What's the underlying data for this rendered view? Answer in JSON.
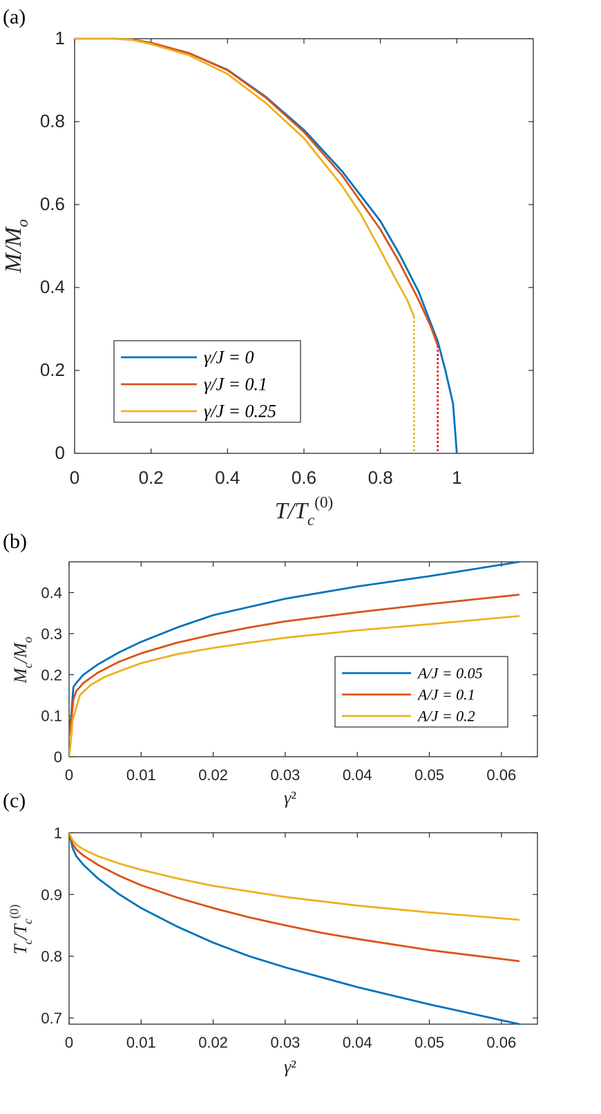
{
  "colors": {
    "blue": "#0072BD",
    "red": "#D95319",
    "yellow": "#EDB120",
    "dashed_red": "#FF0000",
    "dashed_yellow": "#EDB120",
    "axes": "#262626"
  },
  "chart_data": [
    {
      "panel": "(a)",
      "type": "line",
      "xlabel": "T/T_c^(0)",
      "ylabel": "M/M_o",
      "xlim": [
        0,
        1.2
      ],
      "ylim": [
        0,
        1
      ],
      "xticks": [
        "0",
        "0.2",
        "0.4",
        "0.6",
        "0.8",
        "1"
      ],
      "yticks": [
        "0",
        "0.2",
        "0.4",
        "0.6",
        "0.8",
        "1"
      ],
      "legend_position": "lower-left",
      "series": [
        {
          "name": "γ/J = 0",
          "color": "blue",
          "tc": 1.0,
          "jump": 0.0,
          "x": [
            0,
            0.1,
            0.15,
            0.2,
            0.3,
            0.4,
            0.5,
            0.6,
            0.7,
            0.8,
            0.85,
            0.9,
            0.95,
            0.97,
            0.99,
            1.0
          ],
          "y": [
            1,
            1,
            0.998,
            0.99,
            0.965,
            0.925,
            0.86,
            0.78,
            0.68,
            0.56,
            0.48,
            0.39,
            0.27,
            0.2,
            0.12,
            0
          ]
        },
        {
          "name": "γ/J = 0.1",
          "color": "red",
          "tc": 0.95,
          "jump": 0.26,
          "x": [
            0,
            0.1,
            0.15,
            0.2,
            0.3,
            0.4,
            0.5,
            0.6,
            0.7,
            0.8,
            0.85,
            0.9,
            0.93,
            0.95
          ],
          "y": [
            1,
            1,
            0.998,
            0.99,
            0.965,
            0.924,
            0.858,
            0.775,
            0.67,
            0.54,
            0.46,
            0.37,
            0.31,
            0.26
          ]
        },
        {
          "name": "γ/J = 0.25",
          "color": "yellow",
          "tc": 0.888,
          "jump": 0.33,
          "x": [
            0,
            0.1,
            0.15,
            0.2,
            0.3,
            0.4,
            0.5,
            0.6,
            0.7,
            0.75,
            0.8,
            0.84,
            0.87,
            0.888
          ],
          "y": [
            1,
            1,
            0.997,
            0.987,
            0.96,
            0.915,
            0.845,
            0.76,
            0.645,
            0.575,
            0.49,
            0.42,
            0.37,
            0.33
          ]
        }
      ],
      "dashed_drops": [
        {
          "series": "γ/J = 0.1",
          "x": 0.95,
          "from": 0.26,
          "to": 0,
          "color": "dashed_red"
        },
        {
          "series": "γ/J = 0.25",
          "x": 0.888,
          "from": 0.33,
          "to": 0,
          "color": "dashed_yellow"
        }
      ]
    },
    {
      "panel": "(b)",
      "type": "line",
      "xlabel": "γ²",
      "ylabel": "M_c/M_o",
      "xlim": [
        0,
        0.065
      ],
      "ylim": [
        0,
        0.475
      ],
      "xticks": [
        "0",
        "0.01",
        "0.02",
        "0.03",
        "0.04",
        "0.05",
        "0.06"
      ],
      "yticks": [
        "0",
        "0.1",
        "0.2",
        "0.3",
        "0.4"
      ],
      "legend_position": "middle-right",
      "series": [
        {
          "name": "A/J = 0.05",
          "color": "blue",
          "x": [
            0,
            0.0003,
            0.0006,
            0.001,
            0.002,
            0.004,
            0.007,
            0.01,
            0.015,
            0.02,
            0.025,
            0.03,
            0.04,
            0.05,
            0.0625
          ],
          "y": [
            0.06,
            0.1,
            0.17,
            0.18,
            0.2,
            0.225,
            0.255,
            0.28,
            0.315,
            0.345,
            0.365,
            0.385,
            0.415,
            0.44,
            0.475
          ]
        },
        {
          "name": "A/J = 0.1",
          "color": "red",
          "x": [
            0,
            0.0003,
            0.0006,
            0.001,
            0.002,
            0.004,
            0.007,
            0.01,
            0.015,
            0.02,
            0.025,
            0.03,
            0.04,
            0.05,
            0.0625
          ],
          "y": [
            0.05,
            0.09,
            0.14,
            0.16,
            0.18,
            0.205,
            0.232,
            0.252,
            0.278,
            0.298,
            0.315,
            0.33,
            0.352,
            0.372,
            0.395
          ]
        },
        {
          "name": "A/J = 0.2",
          "color": "yellow",
          "x": [
            0,
            0.0002,
            0.0005,
            0.001,
            0.0015,
            0.003,
            0.005,
            0.008,
            0.01,
            0.015,
            0.02,
            0.025,
            0.03,
            0.04,
            0.05,
            0.0625
          ],
          "y": [
            0,
            0.03,
            0.09,
            0.12,
            0.15,
            0.175,
            0.195,
            0.215,
            0.228,
            0.25,
            0.265,
            0.278,
            0.29,
            0.308,
            0.323,
            0.343
          ]
        }
      ]
    },
    {
      "panel": "(c)",
      "type": "line",
      "xlabel": "γ²",
      "ylabel": "T_c/T_c^(0)",
      "xlim": [
        0,
        0.065
      ],
      "ylim": [
        0.69,
        1
      ],
      "xticks": [
        "0",
        "0.01",
        "0.02",
        "0.03",
        "0.04",
        "0.05",
        "0.06"
      ],
      "yticks": [
        "0.7",
        "0.8",
        "0.9",
        "1"
      ],
      "series": [
        {
          "name": "A/J = 0.05",
          "color": "blue",
          "x": [
            0,
            0.0005,
            0.001,
            0.002,
            0.004,
            0.007,
            0.01,
            0.015,
            0.02,
            0.025,
            0.03,
            0.035,
            0.04,
            0.05,
            0.0625
          ],
          "y": [
            1,
            0.975,
            0.962,
            0.948,
            0.926,
            0.9,
            0.878,
            0.848,
            0.822,
            0.8,
            0.782,
            0.766,
            0.75,
            0.722,
            0.69
          ]
        },
        {
          "name": "A/J = 0.1",
          "color": "red",
          "x": [
            0,
            0.0005,
            0.001,
            0.002,
            0.004,
            0.007,
            0.01,
            0.015,
            0.02,
            0.025,
            0.03,
            0.035,
            0.04,
            0.05,
            0.0625
          ],
          "y": [
            1,
            0.982,
            0.973,
            0.963,
            0.948,
            0.93,
            0.915,
            0.895,
            0.878,
            0.863,
            0.85,
            0.838,
            0.828,
            0.81,
            0.792
          ]
        },
        {
          "name": "A/J = 0.2",
          "color": "yellow",
          "x": [
            0,
            0.0005,
            0.001,
            0.002,
            0.004,
            0.007,
            0.01,
            0.015,
            0.02,
            0.025,
            0.03,
            0.035,
            0.04,
            0.05,
            0.0625
          ],
          "y": [
            1,
            0.988,
            0.981,
            0.973,
            0.962,
            0.95,
            0.94,
            0.926,
            0.914,
            0.905,
            0.896,
            0.889,
            0.882,
            0.871,
            0.859
          ]
        }
      ]
    }
  ]
}
